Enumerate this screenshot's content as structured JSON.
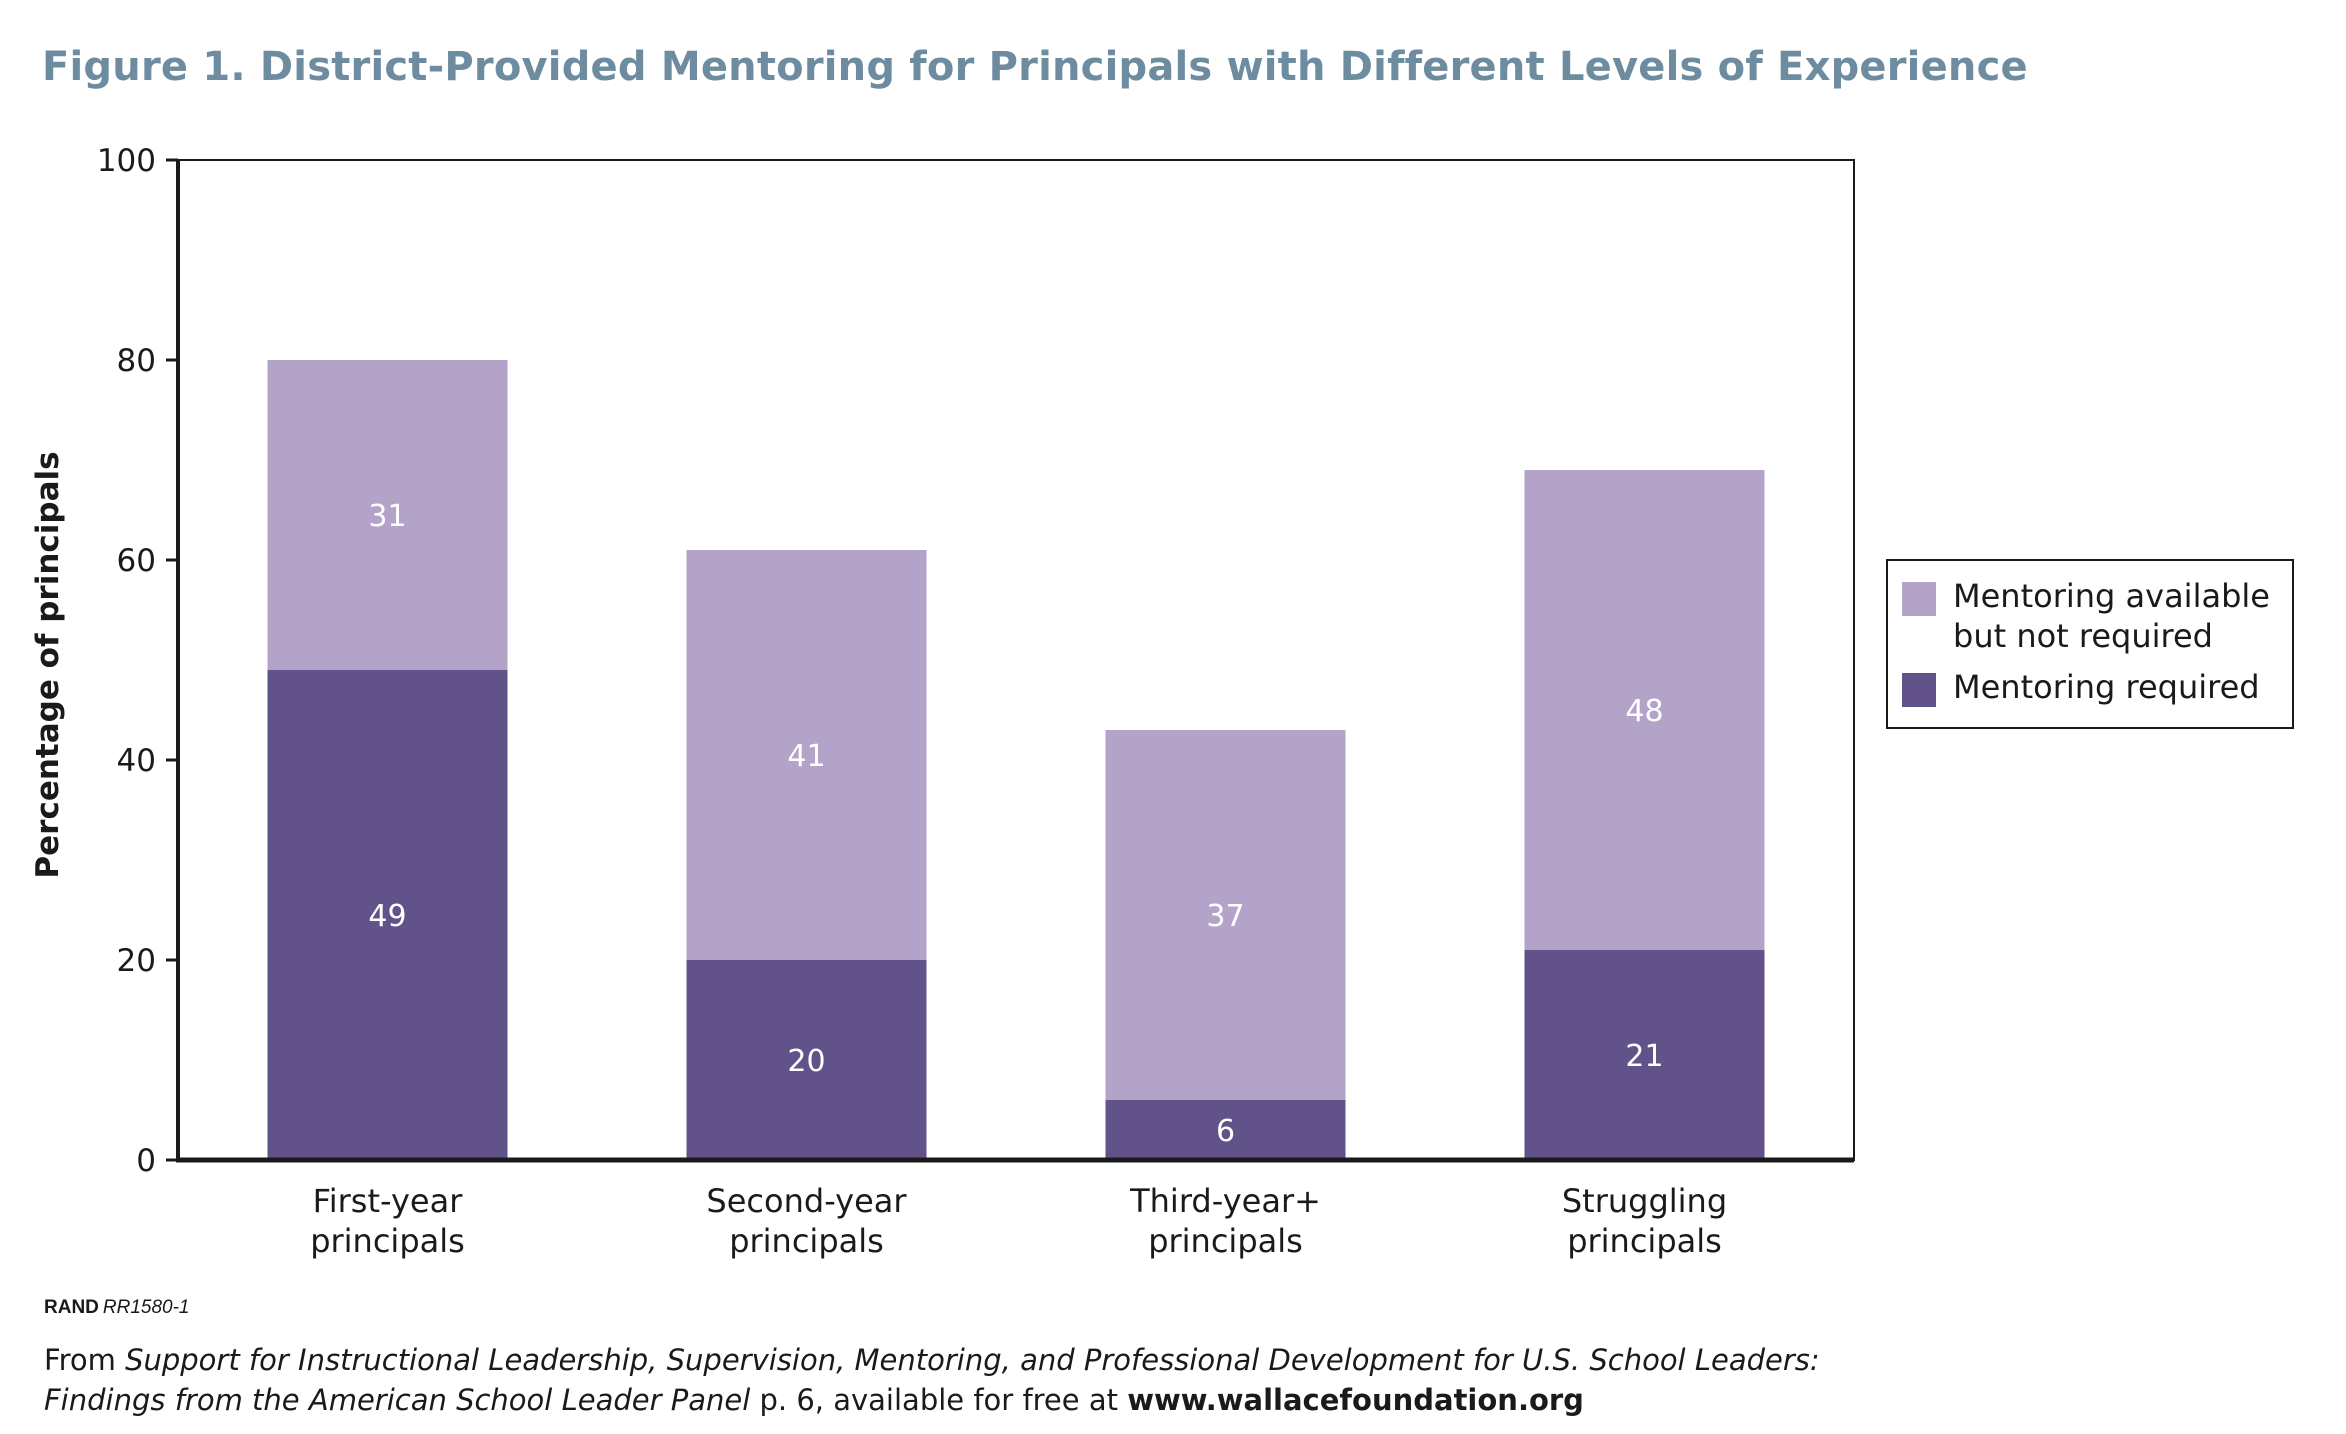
{
  "title": "Figure 1. District-Provided Mentoring for Principals with Different Levels of Experience",
  "footer": {
    "rand_brand": "RAND",
    "rand_code": "RR1580-1",
    "source_prefix": "From ",
    "source_title_line1": "Support for Instructional Leadership, Supervision, Mentoring, and Professional Development for U.S. School Leaders:",
    "source_title_line2": "Findings from the American School Leader Panel",
    "source_page": " p. 6, available for free at ",
    "source_url": "www.wallacefoundation.org"
  },
  "colors": {
    "required": "#62528a",
    "available": "#b3a3c9",
    "title": "#6e8ca0",
    "axis": "#1a1a1a",
    "data_label": "#ffffff"
  },
  "chart_data": {
    "type": "bar",
    "stacked": true,
    "categories": [
      [
        "First-year",
        "principals"
      ],
      [
        "Second-year",
        "principals"
      ],
      [
        "Third-year+",
        "principals"
      ],
      [
        "Struggling",
        "principals"
      ]
    ],
    "series": [
      {
        "name": "Mentoring required",
        "values": [
          49,
          20,
          6,
          21
        ],
        "color": "#62528a"
      },
      {
        "name": "Mentoring available but not required",
        "legend_lines": [
          "Mentoring available",
          "but not required"
        ],
        "values": [
          31,
          41,
          37,
          48
        ],
        "color": "#b3a3c9"
      }
    ],
    "ylabel": "Percentage of principals",
    "xlabel": "",
    "ylim": [
      0,
      100
    ],
    "yticks": [
      0,
      20,
      40,
      60,
      80,
      100
    ],
    "grid": false,
    "legend": "right"
  }
}
